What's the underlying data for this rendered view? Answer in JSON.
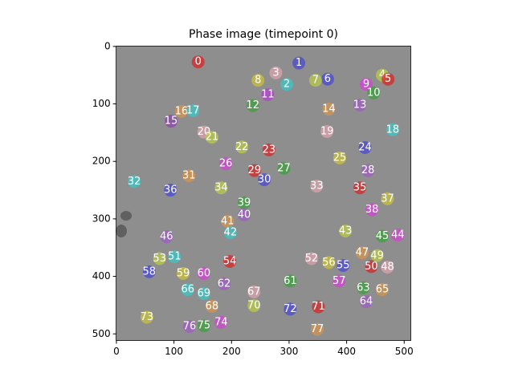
{
  "chart_data": {
    "type": "scatter",
    "title": "Phase image (timepoint 0)",
    "labels": [
      "0",
      "1",
      "2",
      "3",
      "4",
      "5",
      "6",
      "7",
      "8",
      "9",
      "10",
      "11",
      "12",
      "13",
      "14",
      "15",
      "16",
      "17",
      "18",
      "19",
      "20",
      "21",
      "22",
      "23",
      "24",
      "25",
      "26",
      "27",
      "28",
      "29",
      "30",
      "31",
      "32",
      "33",
      "34",
      "35",
      "36",
      "37",
      "38",
      "39",
      "40",
      "41",
      "42",
      "43",
      "44",
      "45",
      "46",
      "47",
      "48",
      "49",
      "50",
      "51",
      "52",
      "53",
      "54",
      "55",
      "56",
      "57",
      "58",
      "59",
      "60",
      "61",
      "62",
      "63",
      "64",
      "65",
      "66",
      "67",
      "68",
      "69",
      "70",
      "71",
      "72",
      "73",
      "74",
      "75",
      "76",
      "77"
    ],
    "x": [
      142,
      317,
      296,
      277,
      462,
      472,
      367,
      346,
      246,
      434,
      447,
      263,
      237,
      423,
      369,
      95,
      113,
      133,
      480,
      366,
      152,
      166,
      218,
      265,
      432,
      388,
      190,
      291,
      437,
      240,
      257,
      126,
      31,
      348,
      182,
      423,
      94,
      471,
      444,
      222,
      222,
      193,
      198,
      398,
      489,
      462,
      87,
      427,
      471,
      453,
      443,
      101,
      339,
      75,
      197,
      394,
      369,
      387,
      57,
      116,
      152,
      302,
      187,
      429,
      434,
      462,
      124,
      239,
      166,
      152,
      239,
      351,
      302,
      53,
      182,
      152,
      127,
      349
    ],
    "y": [
      27,
      29,
      66,
      46,
      50,
      57,
      57,
      59,
      59,
      66,
      81,
      84,
      103,
      102,
      109,
      130,
      113,
      112,
      145,
      148,
      149,
      158,
      175,
      180,
      176,
      194,
      204,
      212,
      216,
      216,
      232,
      225,
      235,
      243,
      246,
      246,
      250,
      265,
      284,
      272,
      293,
      304,
      324,
      321,
      328,
      330,
      331,
      359,
      384,
      364,
      383,
      366,
      369,
      369,
      374,
      381,
      376,
      408,
      392,
      395,
      395,
      408,
      413,
      420,
      444,
      423,
      423,
      427,
      452,
      430,
      451,
      453,
      457,
      471,
      480,
      486,
      487,
      492
    ],
    "colors": [
      "#d62728",
      "#4b4bd0",
      "#3cc4c4",
      "#d9a3ad",
      "#b9c94a",
      "#d62728",
      "#4b4bd0",
      "#b9c94a",
      "#c9c23c",
      "#d244d2",
      "#3f9f3f",
      "#b044c8",
      "#3f9f3f",
      "#9d5ec2",
      "#d4944f",
      "#8a46a8",
      "#d4944f",
      "#3cc4c4",
      "#3cc4c4",
      "#d9a3ad",
      "#d9a3ad",
      "#b9c94a",
      "#b9c94a",
      "#d62728",
      "#4b4bd0",
      "#c9c23c",
      "#d244d2",
      "#3f9f3f",
      "#9d5ec2",
      "#d62728",
      "#4b4bd0",
      "#d4944f",
      "#3cc4c4",
      "#d9a3ad",
      "#b9c94a",
      "#d62728",
      "#4b4bd0",
      "#c9c23c",
      "#d244d2",
      "#3f9f3f",
      "#9d5ec2",
      "#d4944f",
      "#3cc4c4",
      "#b9c94a",
      "#d244d2",
      "#3f9f3f",
      "#9d5ec2",
      "#d4944f",
      "#d9a3ad",
      "#b9c94a",
      "#d62728",
      "#3cc4c4",
      "#d9a3ad",
      "#b9c94a",
      "#d62728",
      "#4b4bd0",
      "#c9c23c",
      "#d244d2",
      "#4b4bd0",
      "#c9c23c",
      "#d244d2",
      "#3f9f3f",
      "#9d5ec2",
      "#3f9f3f",
      "#9d5ec2",
      "#d4944f",
      "#3cc4c4",
      "#d9a3ad",
      "#d4944f",
      "#3cc4c4",
      "#b9c94a",
      "#d62728",
      "#4b4bd0",
      "#c9c23c",
      "#d244d2",
      "#3f9f3f",
      "#9d5ec2",
      "#d4944f"
    ],
    "xlim": [
      -0.5,
      511.5
    ],
    "ylim": [
      511.5,
      -0.5
    ],
    "xticks": [
      0,
      100,
      200,
      300,
      400,
      500
    ],
    "yticks": [
      0,
      100,
      200,
      300,
      400,
      500
    ]
  }
}
